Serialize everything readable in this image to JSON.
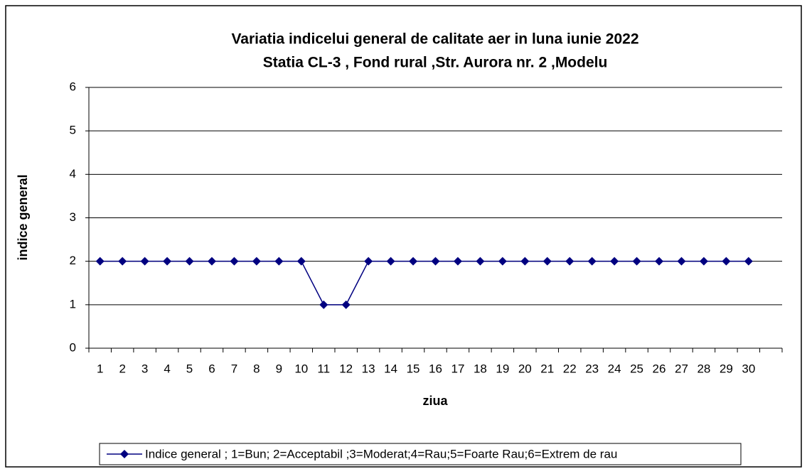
{
  "chart_data": {
    "type": "line",
    "title": "Variatia indicelui general de calitate aer in luna iunie 2022",
    "subtitle": "Statia CL-3 , Fond rural ,Str. Aurora nr. 2 ,Modelu",
    "x_label": "ziua",
    "y_label": "indice general",
    "categories": [
      "1",
      "2",
      "3",
      "4",
      "5",
      "6",
      "7",
      "8",
      "9",
      "10",
      "11",
      "12",
      "13",
      "14",
      "15",
      "16",
      "17",
      "18",
      "19",
      "20",
      "21",
      "22",
      "23",
      "24",
      "25",
      "26",
      "27",
      "28",
      "29",
      "30",
      null
    ],
    "series": [
      {
        "name": "Indice  general ; 1=Bun; 2=Acceptabil ;3=Moderat;4=Rau;5=Foarte Rau;6=Extrem de rau",
        "color": "#000080",
        "values": [
          2,
          2,
          2,
          2,
          2,
          2,
          2,
          2,
          2,
          2,
          1,
          1,
          2,
          2,
          2,
          2,
          2,
          2,
          2,
          2,
          2,
          2,
          2,
          2,
          2,
          2,
          2,
          2,
          2,
          2,
          null
        ]
      }
    ],
    "ylim": [
      0,
      6
    ],
    "yticks": [
      0,
      1,
      2,
      3,
      4,
      5,
      6
    ],
    "grid": true,
    "legend": "bottom"
  }
}
